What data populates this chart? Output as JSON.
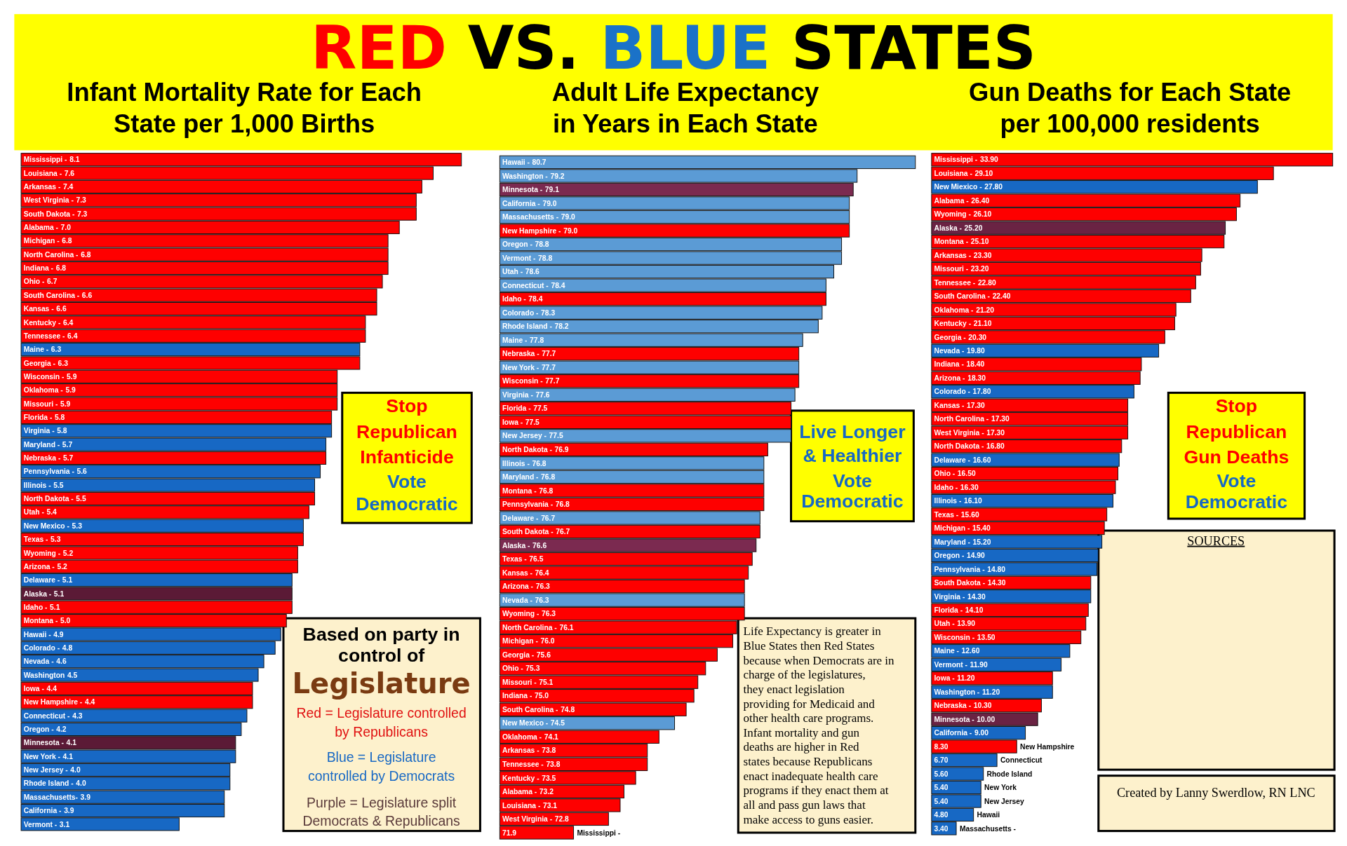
{
  "chart_data": [
    {
      "type": "bar",
      "orientation": "horizontal",
      "title": "Infant Mortality Rate for Each State per 1,000 Births",
      "tick_labels": false,
      "xlim": [
        0.3,
        8.1
      ],
      "categories": [
        "Mississippi -",
        "Louisiana -",
        "Arkansas -",
        "West Virginia -",
        "South Dakota -",
        "Alabama -",
        "Michigan -",
        "North Carolina -",
        "Indiana -",
        "Ohio -",
        "South Carolina -",
        "Kansas -",
        "Kentucky -",
        "Tennessee -",
        "Maine -",
        "Georgia -",
        "Wisconsin -",
        "Oklahoma -",
        "Missouri -",
        "Florida -",
        "Virginia -",
        "Maryland -",
        "Nebraska -",
        "Pennsylvania -",
        "Illinois -",
        "North Dakota -",
        "Utah -",
        "New Mexico -",
        "Texas -",
        "Wyoming -",
        "Arizona -",
        "Delaware -",
        "Alaska -",
        "Idaho -",
        "Montana -",
        "Hawaii -",
        "Colorado -",
        "Nevada -",
        "Washington",
        "Iowa -",
        "New Hampshire -",
        "Connecticut -",
        "Oregon -",
        "Minnesota -",
        "New York -",
        "New Jersey -",
        "Rhode Island -",
        "Massachusetts-",
        "California -",
        "Vermont -"
      ],
      "values": [
        8.1,
        7.6,
        7.4,
        7.3,
        7.3,
        7.0,
        6.8,
        6.8,
        6.8,
        6.7,
        6.6,
        6.6,
        6.4,
        6.4,
        6.3,
        6.3,
        5.9,
        5.9,
        5.9,
        5.8,
        5.8,
        5.7,
        5.7,
        5.6,
        5.5,
        5.5,
        5.4,
        5.3,
        5.3,
        5.2,
        5.2,
        5.1,
        5.1,
        5.1,
        5.0,
        4.9,
        4.8,
        4.6,
        4.5,
        4.4,
        4.4,
        4.3,
        4.2,
        4.1,
        4.1,
        4.0,
        4.0,
        3.9,
        3.9,
        3.1
      ],
      "value_labels": [
        "8.1",
        "7.6",
        "7.4",
        "7.3",
        "7.3",
        "7.0",
        "6.8",
        "6.8",
        "6.8",
        "6.7",
        "6.6",
        "6.6",
        "6.4",
        "6.4",
        "6.3",
        "6.3",
        "5.9",
        "5.9",
        "5.9",
        "5.8",
        "5.8",
        "5.7",
        "5.7",
        "5.6",
        "5.5",
        "5.5",
        "5.4",
        "5.3",
        "5.3",
        "5.2",
        "5.2",
        "5.1",
        "5.1",
        "5.1",
        "5.0",
        "4.9",
        "4.8",
        "4.6",
        "4.5",
        "4.4",
        "4.4",
        "4.3",
        "4.2",
        "4.1",
        "4.1",
        "4.0",
        "4.0",
        "3.9",
        "3.9",
        "3.1"
      ],
      "colors": [
        "#fe0000",
        "#fe0000",
        "#fe0000",
        "#fe0000",
        "#fe0000",
        "#fe0000",
        "#fe0000",
        "#fe0000",
        "#fe0000",
        "#fe0000",
        "#fe0000",
        "#fe0000",
        "#fe0000",
        "#fe0000",
        "#1768c4",
        "#fe0000",
        "#fe0000",
        "#fe0000",
        "#fe0000",
        "#fe0000",
        "#1768c4",
        "#1768c4",
        "#fe0000",
        "#1768c4",
        "#1768c4",
        "#fe0000",
        "#fe0000",
        "#1768c4",
        "#fe0000",
        "#fe0000",
        "#fe0000",
        "#1768c4",
        "#5b1a36",
        "#fe0000",
        "#fe0000",
        "#1768c4",
        "#1768c4",
        "#1768c4",
        "#1768c4",
        "#fe0000",
        "#fe0000",
        "#1768c4",
        "#1768c4",
        "#5b1a36",
        "#1768c4",
        "#1768c4",
        "#1768c4",
        "#1768c4",
        "#1768c4",
        "#1768c4"
      ],
      "annotations": [
        "RED VS. BLUE STATES",
        "Stop Republican Infanticide",
        "Vote Democratic",
        "Based on party in control of",
        "Legislature",
        "Red = Legislature controlled by Republicans",
        "Blue = Legislature controlled by Democrats",
        "Purple = Legislature split Democrats & Republicans"
      ]
    },
    {
      "type": "bar",
      "orientation": "horizontal",
      "title": "Adult Life Expectancy in Years in Each State",
      "tick_labels": false,
      "xlim": [
        70.0,
        80.7
      ],
      "categories": [
        "Hawaii -",
        "Washington -",
        "Minnesota -",
        "California -",
        "Massachusetts -",
        "New Hampshire -",
        "Oregon -",
        "Vermont -",
        "Utah -",
        "Connecticut -",
        "Idaho -",
        "Colorado -",
        "Rhode Island -",
        "Maine -",
        "Nebraska -",
        "New York -",
        "Wisconsin -",
        "Virginia -",
        "Florida -",
        "Iowa -",
        "New Jersey -",
        "North Dakota -",
        "Illinois -",
        "Maryland -",
        "Montana -",
        "Pennsylvania -",
        "Delaware -",
        "South Dakota -",
        "Alaska -",
        "Texas -",
        "Kansas -",
        "Arizona -",
        "Nevada -",
        "Wyoming -",
        "North Carolina -",
        "Michigan -",
        "Georgia -",
        "Ohio -",
        "Missouri -",
        "Indiana -",
        "South Carolina -",
        "New Mexico -",
        "Oklahoma -",
        "Arkansas -",
        "Tennessee -",
        "Kentucky -",
        "Alabama -",
        "Louisiana -",
        "West Virginia -",
        "Mississippi -"
      ],
      "values": [
        80.7,
        79.2,
        79.1,
        79.0,
        79.0,
        79.0,
        78.8,
        78.8,
        78.6,
        78.4,
        78.4,
        78.3,
        78.2,
        77.8,
        77.7,
        77.7,
        77.7,
        77.6,
        77.5,
        77.5,
        77.5,
        76.9,
        76.8,
        76.8,
        76.8,
        76.8,
        76.7,
        76.7,
        76.6,
        76.5,
        76.4,
        76.3,
        76.3,
        76.3,
        76.1,
        76.0,
        75.6,
        75.3,
        75.1,
        75.0,
        74.8,
        74.5,
        74.1,
        73.8,
        73.8,
        73.5,
        73.2,
        73.1,
        72.8,
        71.9
      ],
      "value_labels": [
        "80.7",
        "79.2",
        "79.1",
        "79.0",
        "79.0",
        "79.0",
        "78.8",
        "78.8",
        "78.6",
        "78.4",
        "78.4",
        "78.3",
        "78.2",
        "77.8",
        "77.7",
        "77.7",
        "77.7",
        "77.6",
        "77.5",
        "77.5",
        "77.5",
        "76.9",
        "76.8",
        "76.8",
        "76.8",
        "76.8",
        "76.7",
        "76.7",
        "76.6",
        "76.5",
        "76.4",
        "76.3",
        "76.3",
        "76.3",
        "76.1",
        "76.0",
        "75.6",
        "75.3",
        "75.1",
        "75.0",
        "74.8",
        "74.5",
        "74.1",
        "73.8",
        "73.8",
        "73.5",
        "73.2",
        "73.1",
        "72.8",
        "71.9"
      ],
      "colors": [
        "#5b9bd5",
        "#5b9bd5",
        "#7b2a50",
        "#5b9bd5",
        "#5b9bd5",
        "#fe0000",
        "#5b9bd5",
        "#5b9bd5",
        "#5b9bd5",
        "#5b9bd5",
        "#fe0000",
        "#5b9bd5",
        "#5b9bd5",
        "#5b9bd5",
        "#fe0000",
        "#5b9bd5",
        "#fe0000",
        "#5b9bd5",
        "#fe0000",
        "#fe0000",
        "#5b9bd5",
        "#fe0000",
        "#5b9bd5",
        "#5b9bd5",
        "#fe0000",
        "#fe0000",
        "#5b9bd5",
        "#fe0000",
        "#7b2a50",
        "#fe0000",
        "#fe0000",
        "#fe0000",
        "#5b9bd5",
        "#fe0000",
        "#fe0000",
        "#fe0000",
        "#fe0000",
        "#fe0000",
        "#fe0000",
        "#fe0000",
        "#fe0000",
        "#5b9bd5",
        "#fe0000",
        "#fe0000",
        "#fe0000",
        "#fe0000",
        "#fe0000",
        "#fe0000",
        "#fe0000",
        "#fe0000"
      ],
      "annotations": [
        "Live Longer & Healthier",
        "Vote Democratic",
        "Life Expectancy is greater in Blue States then Red States because when Democrats are in charge of the legislatures, they enact legislation providing for Medicaid and other health care programs. Infant mortality and gun deaths are higher in Red states because Republicans enact inadequate health care programs if they enact them at all and pass gun laws that make access to guns easier."
      ]
    },
    {
      "type": "bar",
      "orientation": "horizontal",
      "title": "Gun Deaths for Each State per 100,000 residents",
      "tick_labels": false,
      "xlim": [
        1.4,
        33.9
      ],
      "categories": [
        "Mississippi -",
        "Louisiana -",
        "New Miexico -",
        "Alabama -",
        "Wyoming -",
        "Alaska -",
        "Montana -",
        "Arkansas -",
        "Missouri -",
        "Tennessee -",
        "South Carolina -",
        "Oklahoma -",
        "Kentucky -",
        "Georgia -",
        "Nevada -",
        "Indiana -",
        "Arizona -",
        "Colorado -",
        "Kansas -",
        "North Carolina -",
        "West Virginia -",
        "North Dakota -",
        "Delaware -",
        "Ohio -",
        "Idaho -",
        "Illinois -",
        "Texas -",
        "Michigan -",
        "Maryland -",
        "Oregon -",
        "Pennsylvania -",
        "South Dakota -",
        "Virginia -",
        "Florida -",
        "Utah -",
        "Wisconsin -",
        "Maine -",
        "Vermont -",
        "Iowa -",
        "Washington -",
        "Nebraska -",
        "Minnesota -",
        "California -",
        "New Hampshire",
        "Connecticut",
        "Rhode Island",
        "New York",
        "New Jersey",
        "Hawaii",
        "Massachusetts -"
      ],
      "values": [
        33.9,
        29.1,
        27.8,
        26.4,
        26.1,
        25.2,
        25.1,
        23.3,
        23.2,
        22.8,
        22.4,
        21.2,
        21.1,
        20.3,
        19.8,
        18.4,
        18.3,
        17.8,
        17.3,
        17.3,
        17.3,
        16.8,
        16.6,
        16.5,
        16.3,
        16.1,
        15.6,
        15.4,
        15.2,
        14.9,
        14.8,
        14.3,
        14.3,
        14.1,
        13.9,
        13.5,
        12.6,
        11.9,
        11.2,
        11.2,
        10.3,
        10.0,
        9.0,
        8.3,
        6.7,
        5.6,
        5.4,
        5.4,
        4.8,
        3.4
      ],
      "value_labels": [
        "33.90",
        "29.10",
        "27.80",
        "26.40",
        "26.10",
        "25.20",
        "25.10",
        "23.30",
        "23.20",
        "22.80",
        "22.40",
        "21.20",
        "21.10",
        "20.30",
        "19.80",
        "18.40",
        "18.30",
        "17.80",
        "17.30",
        "17.30",
        "17.30",
        "16.80",
        "16.60",
        "16.50",
        "16.30",
        "16.10",
        "15.60",
        "15.40",
        "15.20",
        "14.90",
        "14.80",
        "14.30",
        "14.30",
        "14.10",
        "13.90",
        "13.50",
        "12.60",
        "11.90",
        "11.20",
        "11.20",
        "10.30",
        "10.00",
        "9.00",
        "8.30",
        "6.70",
        "5.60",
        "5.40",
        "5.40",
        "4.80",
        "3.40"
      ],
      "colors": [
        "#fe0000",
        "#fe0000",
        "#1768c4",
        "#fe0000",
        "#fe0000",
        "#6a2343",
        "#fe0000",
        "#fe0000",
        "#fe0000",
        "#fe0000",
        "#fe0000",
        "#fe0000",
        "#fe0000",
        "#fe0000",
        "#1768c4",
        "#fe0000",
        "#fe0000",
        "#1768c4",
        "#fe0000",
        "#fe0000",
        "#fe0000",
        "#fe0000",
        "#1768c4",
        "#fe0000",
        "#fe0000",
        "#1768c4",
        "#fe0000",
        "#fe0000",
        "#1768c4",
        "#1768c4",
        "#1768c4",
        "#fe0000",
        "#1768c4",
        "#fe0000",
        "#fe0000",
        "#fe0000",
        "#1768c4",
        "#1768c4",
        "#fe0000",
        "#1768c4",
        "#fe0000",
        "#6a2343",
        "#1768c4",
        "#fe0000",
        "#1768c4",
        "#1768c4",
        "#1768c4",
        "#1768c4",
        "#1768c4",
        "#1768c4"
      ],
      "annotations": [
        "Stop Republican Gun Deaths",
        "Vote Democratic",
        "SOURCES",
        "Created by Lanny Swerdlow, RN LNC"
      ]
    }
  ]
}
